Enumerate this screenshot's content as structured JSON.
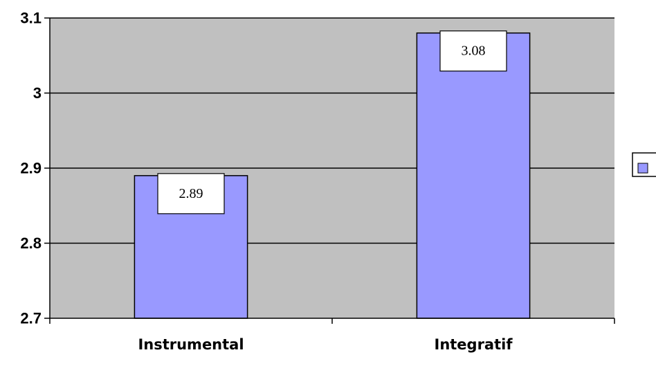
{
  "colors": {
    "plot_background": "#c0c0c0",
    "bar_fill": "#9999ff",
    "outline": "#000000",
    "label_box": "#ffffff"
  },
  "chart_data": {
    "type": "bar",
    "categories": [
      "Instrumental",
      "Integratif"
    ],
    "values": [
      2.89,
      3.08
    ],
    "data_labels": [
      "2.89",
      "3.08"
    ],
    "ylim": [
      2.7,
      3.1
    ],
    "yticks": [
      2.7,
      2.8,
      2.9,
      3.0,
      3.1
    ],
    "ytick_labels": [
      "2.7",
      "2.8",
      "2.9",
      "3",
      "3.1"
    ],
    "grid": true,
    "legend": "right",
    "title": "",
    "xlabel": "",
    "ylabel": ""
  }
}
